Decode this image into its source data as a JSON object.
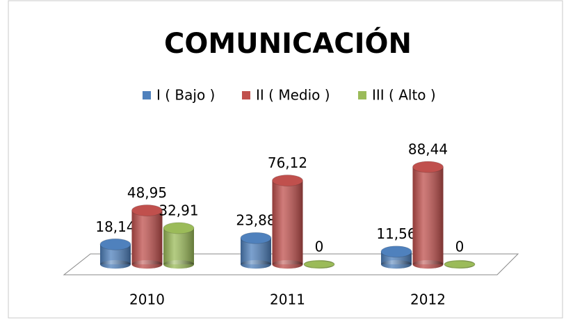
{
  "chart_data": {
    "type": "bar",
    "title": "COMUNICACIÓN",
    "categories": [
      "2010",
      "2011",
      "2012"
    ],
    "series": [
      {
        "name": "I ( Bajo )",
        "color": "#4f81bd",
        "values": [
          18.14,
          23.88,
          11.56
        ],
        "value_labels": [
          "18,14",
          "23,88",
          "11,56"
        ]
      },
      {
        "name": "II ( Medio )",
        "color": "#c0504d",
        "values": [
          48.95,
          76.12,
          88.44
        ],
        "value_labels": [
          "48,95",
          "76,12",
          "88,44"
        ]
      },
      {
        "name": "III ( Alto )",
        "color": "#9bbb59",
        "values": [
          32.91,
          0,
          0
        ],
        "value_labels": [
          "32,91",
          "0",
          "0"
        ]
      }
    ],
    "legend": "top"
  }
}
